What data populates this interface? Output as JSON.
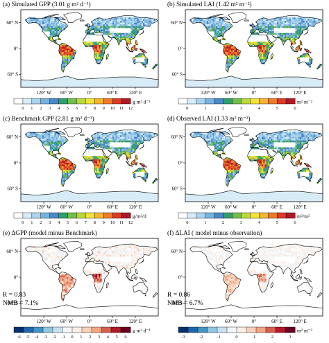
{
  "panels": [
    {
      "id": "a",
      "title": "(a) Simulated GPP (3.01 g m² d⁻¹)",
      "field": "gpp",
      "colorbar": {
        "labels": [
          "0",
          "1",
          "2",
          "3",
          "4",
          "5",
          "6",
          "7",
          "8",
          "9",
          "10",
          "11",
          "12"
        ],
        "unit": "g m² d⁻¹",
        "colors": [
          "#ffffff",
          "#d8ecf7",
          "#a9d3ee",
          "#77b3de",
          "#4a88c8",
          "#2fa06d",
          "#71be4a",
          "#bcd63e",
          "#efe43a",
          "#f5b431",
          "#ee7b2a",
          "#dc3a25",
          "#ad1a25"
        ]
      }
    },
    {
      "id": "b",
      "title": "(b) Simulated LAI (1.42 m² m⁻²)",
      "field": "lai",
      "colorbar": {
        "labels": [
          "0",
          "1",
          "2",
          "3",
          "4",
          "5",
          "6"
        ],
        "unit": "m² m⁻²",
        "colors": [
          "#ffffff",
          "#d8ecf7",
          "#a9d3ee",
          "#77b3de",
          "#4a88c8",
          "#2fa06d",
          "#71be4a",
          "#bcd63e",
          "#efe43a",
          "#f5b431",
          "#ee7b2a",
          "#dc3a25",
          "#ad1a25"
        ]
      }
    },
    {
      "id": "c",
      "title": "(c) Benchmark GPP (2.81 g m² d⁻¹)",
      "field": "gpp",
      "colorbar": {
        "labels": [
          "0",
          "1",
          "2",
          "3",
          "4",
          "5",
          "6",
          "7",
          "8",
          "9",
          "10",
          "11",
          "12"
        ],
        "unit": "g/m²/d",
        "colors": [
          "#ffffff",
          "#d8ecf7",
          "#a9d3ee",
          "#77b3de",
          "#4a88c8",
          "#2fa06d",
          "#71be4a",
          "#bcd63e",
          "#efe43a",
          "#f5b431",
          "#ee7b2a",
          "#dc3a25",
          "#ad1a25"
        ]
      }
    },
    {
      "id": "d",
      "title": "(d) Observed LAI (1.33 m² m⁻²)",
      "field": "lai",
      "colorbar": {
        "labels": [
          "0",
          "1",
          "2",
          "3",
          "4",
          "5",
          "6"
        ],
        "unit": "m²/m²",
        "colors": [
          "#ffffff",
          "#d8ecf7",
          "#a9d3ee",
          "#77b3de",
          "#4a88c8",
          "#2fa06d",
          "#71be4a",
          "#bcd63e",
          "#efe43a",
          "#f5b431",
          "#ee7b2a",
          "#dc3a25",
          "#ad1a25"
        ]
      }
    },
    {
      "id": "e",
      "title": "(e) ΔGPP (model minus Benchmark)",
      "field": "dgpp",
      "stats": {
        "r": "R = 0.83",
        "nmb": "NMB = 7.1%"
      },
      "colorbar": {
        "labels": [
          "-6",
          "-5",
          "-4",
          "-3",
          "-2",
          "-1",
          "0",
          "1",
          "2",
          "3",
          "4",
          "5",
          "6"
        ],
        "unit": "g m² d⁻¹",
        "colors": [
          "#08306b",
          "#2166ac",
          "#4393c3",
          "#92c5de",
          "#c9e1ef",
          "#f0f6fa",
          "#fbeee6",
          "#f7d0bb",
          "#f2a582",
          "#d6604d",
          "#b2182b",
          "#67001f"
        ]
      }
    },
    {
      "id": "f",
      "title": "(f) ΔLAI ( model minus observation)",
      "field": "dlai",
      "stats": {
        "r": "R = 0.86",
        "nmb": "NMB = 6.7%"
      },
      "colorbar": {
        "labels": [
          "-3",
          "-2",
          "-1",
          "0",
          "1",
          "2",
          "3"
        ],
        "unit": "m² m⁻²",
        "colors": [
          "#08306b",
          "#2166ac",
          "#4393c3",
          "#92c5de",
          "#c9e1ef",
          "#f0f6fa",
          "#fbeee6",
          "#f7d0bb",
          "#f2a582",
          "#d6604d",
          "#b2182b",
          "#67001f"
        ]
      }
    }
  ],
  "axes": {
    "lat_labels": [
      "60° N",
      "0°",
      "60° S"
    ],
    "lon_labels": [
      "120° W",
      "60° W",
      "0°",
      "60° E",
      "120° E"
    ]
  }
}
